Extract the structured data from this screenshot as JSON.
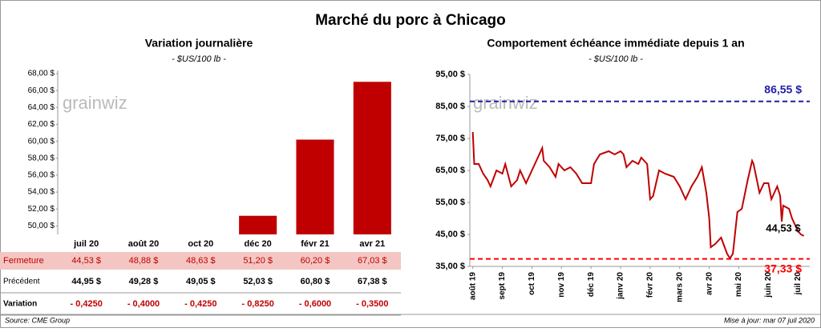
{
  "title": "Marché du porc à Chicago",
  "watermark": "grainwiz",
  "chart_data": [
    {
      "type": "bar",
      "title": "Variation journalière",
      "subtitle": "- $US/100 lb -",
      "categories": [
        "juil 20",
        "août 20",
        "oct 20",
        "déc 20",
        "févr 21",
        "avr 21"
      ],
      "series": [
        {
          "name": "Fermeture",
          "color": "#c00000",
          "values": [
            44.53,
            48.88,
            48.63,
            51.2,
            60.2,
            67.03
          ],
          "value_labels": [
            "44,53 $",
            "48,88 $",
            "48,63 $",
            "51,20 $",
            "60,20 $",
            "67,03 $"
          ]
        }
      ],
      "ylim": [
        49,
        68
      ],
      "yticks": [
        {
          "value": 50,
          "label": "50,00 $"
        },
        {
          "value": 52,
          "label": "52,00 $"
        },
        {
          "value": 54,
          "label": "54,00 $"
        },
        {
          "value": 56,
          "label": "56,00 $"
        },
        {
          "value": 58,
          "label": "58,00 $"
        },
        {
          "value": 60,
          "label": "60,00 $"
        },
        {
          "value": 62,
          "label": "62,00 $"
        },
        {
          "value": 64,
          "label": "64,00 $"
        },
        {
          "value": 66,
          "label": "66,00 $"
        },
        {
          "value": 68,
          "label": "68,00 $"
        }
      ]
    },
    {
      "type": "line",
      "title": "Comportement échéance immédiate depuis 1 an",
      "subtitle": "- $US/100 lb -",
      "series": [
        {
          "color": "#c00000",
          "x": [
            0,
            0.05,
            0.2,
            0.35,
            0.5,
            0.6,
            0.8,
            1.0,
            1.1,
            1.3,
            1.5,
            1.6,
            1.8,
            1.95,
            2.1,
            2.2,
            2.35,
            2.4,
            2.6,
            2.8,
            2.9,
            3.1,
            3.3,
            3.5,
            3.7,
            4.0,
            4.1,
            4.3,
            4.6,
            4.8,
            5.0,
            5.1,
            5.2,
            5.4,
            5.6,
            5.7,
            5.9,
            6.0,
            6.1,
            6.3,
            6.5,
            6.8,
            7.0,
            7.2,
            7.4,
            7.6,
            7.75,
            7.9,
            8.0,
            8.05,
            8.2,
            8.4,
            8.6,
            8.7,
            8.8,
            8.95,
            9.1,
            9.3,
            9.45,
            9.5,
            9.7,
            9.85,
            10.0,
            10.1,
            10.3,
            10.4,
            10.45,
            10.5,
            10.7,
            10.8,
            10.9,
            11.0,
            11.1,
            11.2
          ],
          "values": [
            77,
            67,
            67,
            64,
            62,
            60,
            65,
            64,
            67,
            60,
            62,
            65,
            61,
            64,
            67,
            69,
            72,
            68,
            66,
            63,
            67,
            65,
            66,
            64,
            61,
            61,
            67,
            70,
            71,
            70,
            71,
            70,
            66,
            68,
            67,
            69,
            67,
            56,
            57,
            65,
            64,
            63,
            60,
            56,
            60,
            63,
            66,
            58,
            50,
            41,
            42,
            44,
            39,
            37.5,
            39,
            52,
            53,
            62,
            68,
            67,
            58,
            61,
            61,
            56,
            60,
            57,
            49,
            54,
            53,
            50,
            48,
            46,
            45,
            44.53
          ]
        }
      ],
      "xlim": [
        -0.1,
        11.4
      ],
      "xticks": [
        {
          "value": 0,
          "label": "août 19"
        },
        {
          "value": 1,
          "label": "sept 19"
        },
        {
          "value": 2,
          "label": "oct 19"
        },
        {
          "value": 3,
          "label": "nov 19"
        },
        {
          "value": 4,
          "label": "déc 19"
        },
        {
          "value": 5,
          "label": "janv 20"
        },
        {
          "value": 6,
          "label": "févr 20"
        },
        {
          "value": 7,
          "label": "mars 20"
        },
        {
          "value": 8,
          "label": "avr 20"
        },
        {
          "value": 9,
          "label": "mai 20"
        },
        {
          "value": 10,
          "label": "juin 20"
        },
        {
          "value": 11,
          "label": "juil 20"
        }
      ],
      "ylim": [
        35,
        95
      ],
      "yticks": [
        {
          "value": 35,
          "label": "35,00 $"
        },
        {
          "value": 45,
          "label": "45,00 $"
        },
        {
          "value": 55,
          "label": "55,00 $"
        },
        {
          "value": 65,
          "label": "65,00 $"
        },
        {
          "value": 75,
          "label": "75,00 $"
        },
        {
          "value": 85,
          "label": "85,00 $"
        },
        {
          "value": 95,
          "label": "95,00 $"
        }
      ],
      "reference_lines": [
        {
          "value": 86.55,
          "label": "86,55 $",
          "color": "#1f1fa8"
        },
        {
          "value": 37.33,
          "label": "37,33 $",
          "color": "#ff0000"
        }
      ],
      "annotations": [
        {
          "text": "44,53 $",
          "x": 11.2,
          "y": 44.53
        }
      ]
    }
  ],
  "table": {
    "rows": [
      {
        "label": "Précédent",
        "values": [
          "44,95 $",
          "49,28 $",
          "49,05 $",
          "52,03 $",
          "60,80 $",
          "67,38 $"
        ]
      },
      {
        "label": "Variation",
        "values": [
          "- 0,4250",
          "- 0,4000",
          "- 0,4250",
          "- 0,8250",
          "- 0,6000",
          "- 0,3500"
        ]
      }
    ]
  },
  "footer": {
    "source": "Source: CME Group",
    "updated": "Mise à jour: mar 07 juil 2020"
  }
}
